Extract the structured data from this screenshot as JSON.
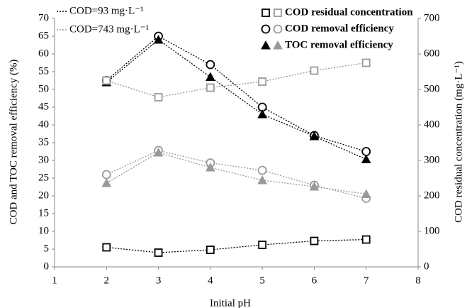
{
  "chart_data": {
    "type": "line",
    "x_label": "Initial pH",
    "y_label": "COD and TOC removal efficiency (%)",
    "y2_label": "COD residual concentration (mg·L⁻¹)",
    "x": [
      2,
      3,
      4,
      5,
      6,
      7
    ],
    "xlim": [
      1,
      8
    ],
    "xticks": [
      1,
      2,
      3,
      4,
      5,
      6,
      7,
      8
    ],
    "ylim": [
      0,
      70
    ],
    "yticks": [
      0,
      5,
      10,
      15,
      20,
      25,
      30,
      35,
      40,
      45,
      50,
      55,
      60,
      65,
      70
    ],
    "y2lim": [
      0,
      700
    ],
    "y2ticks": [
      0,
      100,
      200,
      300,
      400,
      500,
      600,
      700
    ],
    "line_legend": [
      {
        "label": "COD=93 mg·L⁻¹",
        "color": "#000000"
      },
      {
        "label": "COD=743 mg·L⁻¹",
        "color": "#999999"
      }
    ],
    "marker_legend": [
      {
        "label": "COD residual concentration",
        "marker": "square"
      },
      {
        "label": "COD removal efficiency",
        "marker": "circle"
      },
      {
        "label": "TOC removal efficiency",
        "marker": "triangle"
      }
    ],
    "series": [
      {
        "color": "#000000",
        "marker": "square",
        "axis": "y2",
        "values": [
          55,
          40,
          48,
          62,
          73,
          77
        ]
      },
      {
        "color": "#000000",
        "marker": "circle",
        "axis": "y",
        "values": [
          52.5,
          65,
          57,
          45,
          37,
          32.5
        ]
      },
      {
        "color": "#000000",
        "marker": "triangle",
        "axis": "y",
        "values": [
          52,
          64,
          53.5,
          43,
          36.8,
          30.3
        ]
      },
      {
        "color": "#999999",
        "marker": "square",
        "axis": "y2",
        "values": [
          525,
          478,
          505,
          522,
          553,
          575
        ]
      },
      {
        "color": "#999999",
        "marker": "circle",
        "axis": "y",
        "values": [
          26,
          32.8,
          29.3,
          27.2,
          23,
          19.3
        ]
      },
      {
        "color": "#999999",
        "marker": "triangle",
        "axis": "y",
        "values": [
          23.6,
          32.2,
          28,
          24.4,
          22.6,
          20.5
        ]
      }
    ]
  }
}
